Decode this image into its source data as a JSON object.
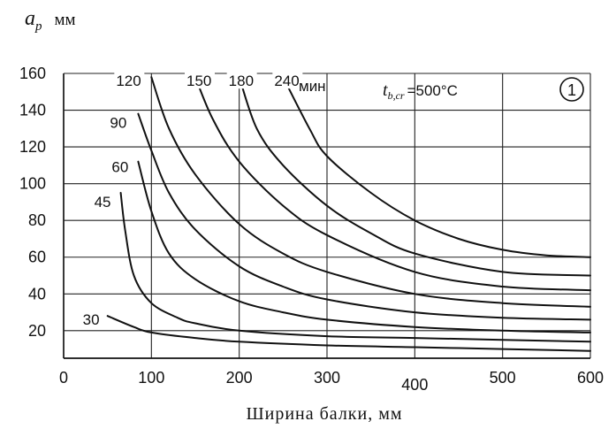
{
  "chart_data": {
    "type": "line",
    "title": "",
    "xlabel": "Ширина балки, мм",
    "ylabel": {
      "symbol": "a",
      "subscript": "p",
      "unit": "мм"
    },
    "xlim": [
      0,
      600
    ],
    "ylim": [
      5,
      160
    ],
    "x_ticks": [
      "0",
      "100",
      "200",
      "300",
      "400",
      "500",
      "600"
    ],
    "y_ticks": [
      "20",
      "40",
      "60",
      "80",
      "100",
      "120",
      "140",
      "160"
    ],
    "grid": true,
    "annotation": {
      "symbol": "t",
      "subscript": "b,cr",
      "value": "=500°C"
    },
    "badge": "1",
    "unit_label": "мин",
    "series": [
      {
        "label": "30",
        "x": [
          50,
          80,
          100,
          150,
          200,
          300,
          400,
          500,
          600
        ],
        "y": [
          28,
          22,
          19,
          16,
          14,
          12,
          11,
          10,
          9
        ]
      },
      {
        "label": "45",
        "x": [
          65,
          70,
          80,
          100,
          130,
          150,
          200,
          300,
          400,
          500,
          600
        ],
        "y": [
          95,
          75,
          50,
          35,
          27,
          24,
          20,
          17,
          16,
          15,
          14
        ]
      },
      {
        "label": "60",
        "x": [
          85,
          100,
          120,
          150,
          200,
          250,
          300,
          400,
          500,
          600
        ],
        "y": [
          112,
          85,
          62,
          48,
          36,
          30,
          26,
          22,
          20,
          19
        ]
      },
      {
        "label": "90",
        "x": [
          85,
          100,
          120,
          150,
          200,
          250,
          300,
          400,
          500,
          600
        ],
        "y": [
          138,
          118,
          95,
          75,
          55,
          44,
          37,
          30,
          27,
          26
        ]
      },
      {
        "label": "120",
        "x": [
          100,
          120,
          150,
          200,
          250,
          300,
          400,
          500,
          600
        ],
        "y": [
          158,
          130,
          105,
          78,
          62,
          52,
          40,
          35,
          33
        ]
      },
      {
        "label": "150",
        "x": [
          150,
          170,
          200,
          250,
          300,
          400,
          500,
          600
        ],
        "y": [
          158,
          135,
          112,
          88,
          72,
          52,
          44,
          42
        ]
      },
      {
        "label": "180",
        "x": [
          200,
          220,
          250,
          300,
          350,
          400,
          500,
          600
        ],
        "y": [
          158,
          130,
          110,
          88,
          73,
          62,
          52,
          50
        ]
      },
      {
        "label": "240",
        "x": [
          250,
          280,
          300,
          350,
          400,
          450,
          500,
          550,
          600
        ],
        "y": [
          158,
          130,
          115,
          95,
          80,
          70,
          64,
          61,
          60
        ]
      }
    ]
  }
}
